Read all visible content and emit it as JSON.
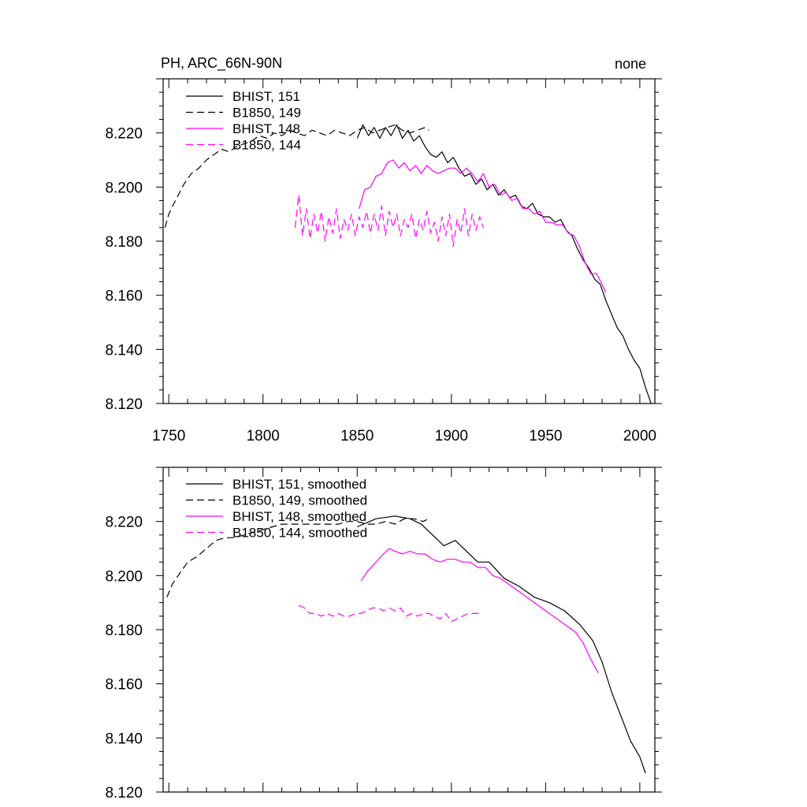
{
  "chart_data": [
    {
      "type": "line",
      "title": "PH, ARC_66N-90N",
      "subtitle": "none",
      "xlim": [
        1747,
        2008
      ],
      "ylim": [
        8.12,
        8.24
      ],
      "x_ticks": [
        1750,
        1800,
        1850,
        1900,
        1950,
        2000
      ],
      "y_ticks": [
        "8.120",
        "8.140",
        "8.160",
        "8.180",
        "8.200",
        "8.220"
      ],
      "legend_position": "top-left",
      "series": [
        {
          "name": "BHIST, 151",
          "color": "#000000",
          "dash": "solid",
          "x": [
            1850,
            1853,
            1856,
            1859,
            1862,
            1865,
            1868,
            1871,
            1874,
            1877,
            1880,
            1883,
            1886,
            1889,
            1892,
            1895,
            1898,
            1901,
            1904,
            1907,
            1910,
            1913,
            1916,
            1919,
            1922,
            1925,
            1928,
            1931,
            1934,
            1937,
            1940,
            1943,
            1946,
            1949,
            1952,
            1955,
            1958,
            1961,
            1964,
            1967,
            1970,
            1973,
            1976,
            1979,
            1982,
            1985,
            1988,
            1991,
            1994,
            1997,
            2000,
            2003,
            2006
          ],
          "y": [
            8.218,
            8.223,
            8.219,
            8.222,
            8.218,
            8.222,
            8.219,
            8.223,
            8.218,
            8.221,
            8.217,
            8.219,
            8.215,
            8.212,
            8.211,
            8.213,
            8.209,
            8.211,
            8.207,
            8.204,
            8.205,
            8.201,
            8.203,
            8.199,
            8.201,
            8.197,
            8.199,
            8.196,
            8.197,
            8.193,
            8.192,
            8.194,
            8.19,
            8.189,
            8.189,
            8.187,
            8.188,
            8.184,
            8.182,
            8.177,
            8.173,
            8.17,
            8.166,
            8.164,
            8.158,
            8.153,
            8.148,
            8.145,
            8.14,
            8.136,
            8.133,
            8.126,
            8.12
          ]
        },
        {
          "name": "B1850, 149",
          "color": "#000000",
          "dash": "dashed",
          "x": [
            1748,
            1750,
            1752,
            1755,
            1758,
            1762,
            1766,
            1770,
            1774,
            1778,
            1782,
            1786,
            1790,
            1794,
            1798,
            1802,
            1806,
            1810,
            1814,
            1818,
            1822,
            1826,
            1830,
            1834,
            1838,
            1842,
            1846,
            1850,
            1854,
            1858,
            1862,
            1866,
            1870,
            1874,
            1878,
            1882,
            1886,
            1888
          ],
          "y": [
            8.185,
            8.19,
            8.193,
            8.197,
            8.201,
            8.205,
            8.207,
            8.21,
            8.212,
            8.214,
            8.213,
            8.215,
            8.216,
            8.217,
            8.219,
            8.218,
            8.22,
            8.219,
            8.221,
            8.22,
            8.219,
            8.221,
            8.22,
            8.219,
            8.221,
            8.22,
            8.219,
            8.221,
            8.222,
            8.22,
            8.221,
            8.222,
            8.223,
            8.221,
            8.22,
            8.221,
            8.222,
            8.221
          ]
        },
        {
          "name": "BHIST, 148",
          "color": "#ff00ff",
          "dash": "solid",
          "x": [
            1851,
            1854,
            1857,
            1860,
            1863,
            1866,
            1869,
            1872,
            1875,
            1878,
            1881,
            1884,
            1887,
            1890,
            1893,
            1896,
            1899,
            1902,
            1905,
            1908,
            1911,
            1914,
            1917,
            1920,
            1923,
            1926,
            1929,
            1932,
            1935,
            1938,
            1941,
            1944,
            1947,
            1950,
            1953,
            1956,
            1959,
            1962,
            1965,
            1968,
            1971,
            1974,
            1977,
            1980,
            1982
          ],
          "y": [
            8.192,
            8.199,
            8.2,
            8.204,
            8.205,
            8.209,
            8.21,
            8.207,
            8.209,
            8.206,
            8.208,
            8.205,
            8.208,
            8.206,
            8.205,
            8.206,
            8.207,
            8.207,
            8.205,
            8.207,
            8.205,
            8.202,
            8.205,
            8.2,
            8.201,
            8.197,
            8.198,
            8.195,
            8.196,
            8.192,
            8.192,
            8.19,
            8.191,
            8.187,
            8.187,
            8.186,
            8.186,
            8.183,
            8.182,
            8.178,
            8.172,
            8.168,
            8.168,
            8.164,
            8.161
          ]
        },
        {
          "name": "B1850, 144",
          "color": "#ff00ff",
          "dash": "dashed",
          "x": [
            1817,
            1819,
            1821,
            1823,
            1825,
            1827,
            1829,
            1831,
            1833,
            1835,
            1837,
            1839,
            1841,
            1843,
            1845,
            1847,
            1849,
            1851,
            1853,
            1855,
            1857,
            1859,
            1861,
            1863,
            1865,
            1867,
            1869,
            1871,
            1873,
            1875,
            1877,
            1879,
            1881,
            1883,
            1885,
            1887,
            1889,
            1891,
            1893,
            1895,
            1897,
            1899,
            1901,
            1903,
            1905,
            1907,
            1909,
            1911,
            1913,
            1915,
            1917
          ],
          "y": [
            8.185,
            8.197,
            8.182,
            8.192,
            8.181,
            8.19,
            8.183,
            8.191,
            8.18,
            8.189,
            8.183,
            8.192,
            8.181,
            8.188,
            8.184,
            8.19,
            8.182,
            8.189,
            8.185,
            8.191,
            8.183,
            8.19,
            8.184,
            8.193,
            8.182,
            8.191,
            8.185,
            8.19,
            8.182,
            8.188,
            8.185,
            8.19,
            8.181,
            8.188,
            8.184,
            8.191,
            8.183,
            8.187,
            8.18,
            8.189,
            8.182,
            8.19,
            8.178,
            8.188,
            8.183,
            8.192,
            8.182,
            8.19,
            8.184,
            8.189,
            8.185
          ]
        }
      ]
    },
    {
      "type": "line",
      "xlim": [
        1747,
        2008
      ],
      "ylim": [
        8.12,
        8.24
      ],
      "x_ticks": [
        1750,
        1800,
        1850,
        1900,
        1950,
        2000
      ],
      "y_ticks": [
        "8.120",
        "8.140",
        "8.160",
        "8.180",
        "8.200",
        "8.220"
      ],
      "legend_position": "top-left",
      "series": [
        {
          "name": "BHIST, 151, smoothed",
          "color": "#000000",
          "dash": "solid",
          "x": [
            1850,
            1860,
            1870,
            1878,
            1884,
            1890,
            1896,
            1902,
            1908,
            1914,
            1920,
            1928,
            1936,
            1944,
            1952,
            1960,
            1968,
            1975,
            1980,
            1985,
            1990,
            1995,
            2000,
            2003
          ],
          "y": [
            8.218,
            8.221,
            8.222,
            8.221,
            8.219,
            8.215,
            8.211,
            8.213,
            8.209,
            8.205,
            8.205,
            8.199,
            8.196,
            8.192,
            8.19,
            8.187,
            8.182,
            8.176,
            8.168,
            8.157,
            8.148,
            8.139,
            8.133,
            8.127
          ]
        },
        {
          "name": "B1850, 149, smoothed",
          "color": "#000000",
          "dash": "dashed",
          "x": [
            1749,
            1752,
            1756,
            1760,
            1765,
            1770,
            1775,
            1780,
            1785,
            1790,
            1795,
            1800,
            1805,
            1810,
            1815,
            1820,
            1825,
            1830,
            1835,
            1840,
            1845,
            1850,
            1855,
            1860,
            1865,
            1870,
            1875,
            1880,
            1885,
            1888
          ],
          "y": [
            8.192,
            8.197,
            8.201,
            8.205,
            8.207,
            8.21,
            8.213,
            8.214,
            8.214,
            8.215,
            8.216,
            8.217,
            8.218,
            8.219,
            8.219,
            8.219,
            8.219,
            8.219,
            8.219,
            8.219,
            8.22,
            8.22,
            8.219,
            8.219,
            8.22,
            8.219,
            8.221,
            8.221,
            8.22,
            8.221
          ]
        },
        {
          "name": "BHIST, 148, smoothed",
          "color": "#ff00ff",
          "dash": "solid",
          "x": [
            1852,
            1856,
            1860,
            1864,
            1867,
            1870,
            1874,
            1878,
            1882,
            1886,
            1890,
            1894,
            1898,
            1902,
            1906,
            1910,
            1914,
            1918,
            1922,
            1926,
            1930,
            1936,
            1942,
            1948,
            1954,
            1960,
            1966,
            1970,
            1974,
            1978
          ],
          "y": [
            8.198,
            8.202,
            8.205,
            8.208,
            8.21,
            8.209,
            8.208,
            8.209,
            8.208,
            8.208,
            8.206,
            8.205,
            8.206,
            8.206,
            8.205,
            8.205,
            8.203,
            8.203,
            8.2,
            8.199,
            8.197,
            8.194,
            8.191,
            8.188,
            8.185,
            8.182,
            8.179,
            8.175,
            8.169,
            8.164
          ]
        },
        {
          "name": "B1850, 144, smoothed",
          "color": "#ff00ff",
          "dash": "dashed",
          "x": [
            1819,
            1822,
            1825,
            1828,
            1831,
            1834,
            1837,
            1840,
            1843,
            1846,
            1849,
            1852,
            1855,
            1858,
            1861,
            1864,
            1867,
            1870,
            1873,
            1876,
            1879,
            1882,
            1885,
            1888,
            1891,
            1894,
            1897,
            1900,
            1903,
            1906,
            1909,
            1912,
            1915
          ],
          "y": [
            8.189,
            8.188,
            8.186,
            8.186,
            8.185,
            8.186,
            8.185,
            8.186,
            8.185,
            8.185,
            8.186,
            8.186,
            8.187,
            8.188,
            8.188,
            8.187,
            8.188,
            8.187,
            8.188,
            8.185,
            8.186,
            8.185,
            8.186,
            8.186,
            8.185,
            8.184,
            8.186,
            8.183,
            8.184,
            8.185,
            8.186,
            8.186,
            8.186
          ]
        }
      ]
    }
  ]
}
